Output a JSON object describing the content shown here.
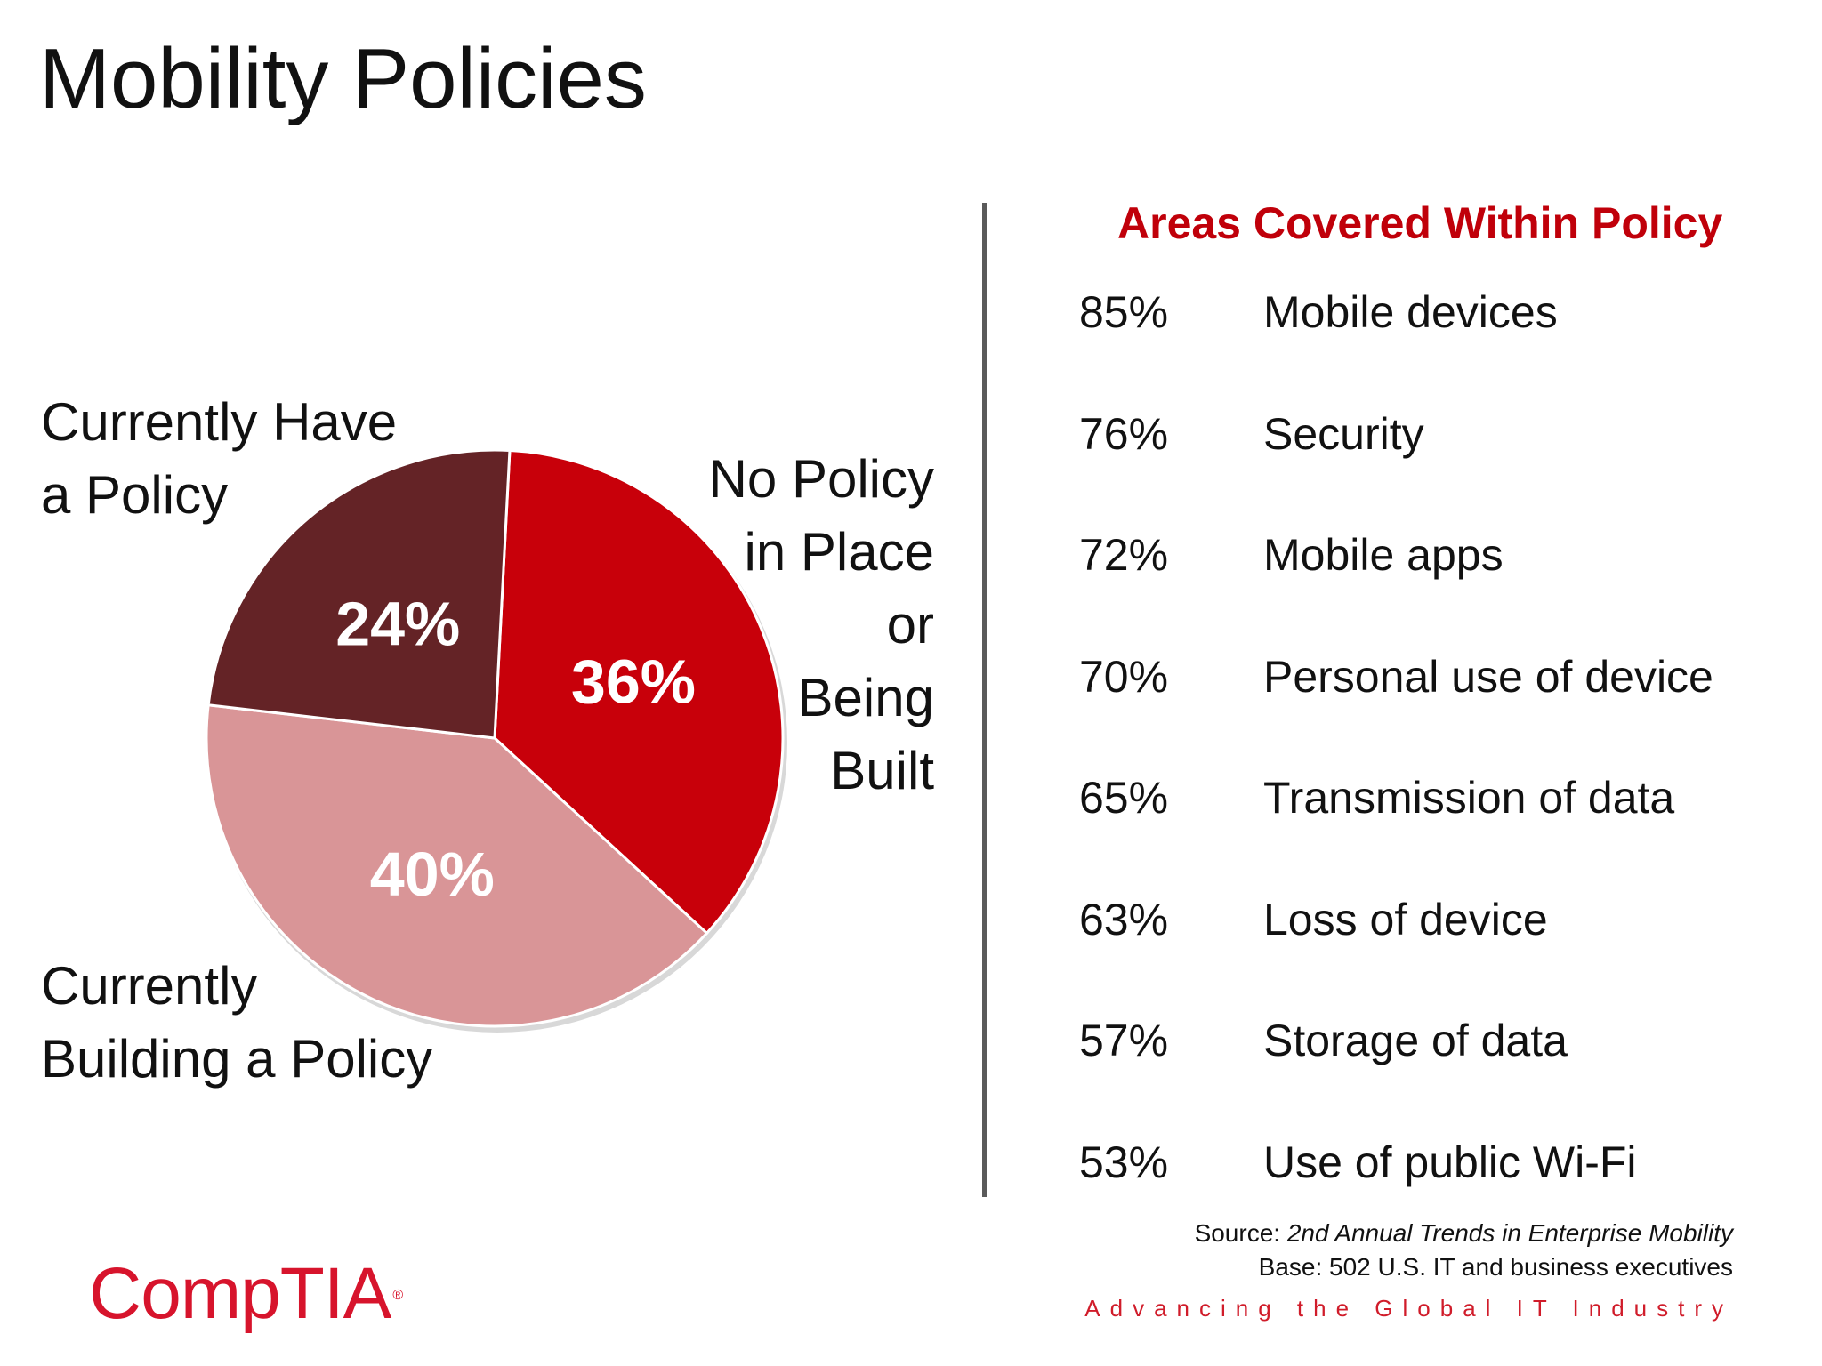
{
  "title": "Mobility Policies",
  "chart_data": [
    {
      "type": "pie",
      "slices": [
        {
          "name": "No Policy in Place or Being Built",
          "value": 36,
          "label": "36%",
          "color": "#c8000a"
        },
        {
          "name": "Currently Building a Policy",
          "value": 40,
          "label": "40%",
          "color": "#d99597"
        },
        {
          "name": "Currently Have a Policy",
          "value": 24,
          "label": "24%",
          "color": "#642326"
        }
      ],
      "outside_labels": {
        "have": [
          "Currently Have",
          "a Policy"
        ],
        "building": [
          "Currently",
          "Building a Policy"
        ],
        "none": [
          "No Policy",
          "in Place",
          "or",
          "Being",
          "Built"
        ]
      }
    },
    {
      "type": "table",
      "title": "Areas Covered Within Policy",
      "rows": [
        {
          "pct": "85%",
          "value": 85,
          "label": "Mobile devices"
        },
        {
          "pct": "76%",
          "value": 76,
          "label": "Security"
        },
        {
          "pct": "72%",
          "value": 72,
          "label": "Mobile apps"
        },
        {
          "pct": "70%",
          "value": 70,
          "label": "Personal use of device"
        },
        {
          "pct": "65%",
          "value": 65,
          "label": "Transmission of data"
        },
        {
          "pct": "63%",
          "value": 63,
          "label": "Loss of device"
        },
        {
          "pct": "57%",
          "value": 57,
          "label": "Storage of data"
        },
        {
          "pct": "53%",
          "value": 53,
          "label": "Use of public Wi-Fi"
        }
      ]
    }
  ],
  "source": {
    "prefix": "Source: ",
    "title": "2nd Annual Trends in Enterprise Mobility",
    "base": "Base: 502 U.S. IT and business executives"
  },
  "logo": {
    "text": "CompTIA",
    "mark": "®"
  },
  "tagline": "Advancing the Global IT Industry",
  "colors": {
    "accent_red": "#c0000a",
    "divider": "#5a5a5a"
  }
}
